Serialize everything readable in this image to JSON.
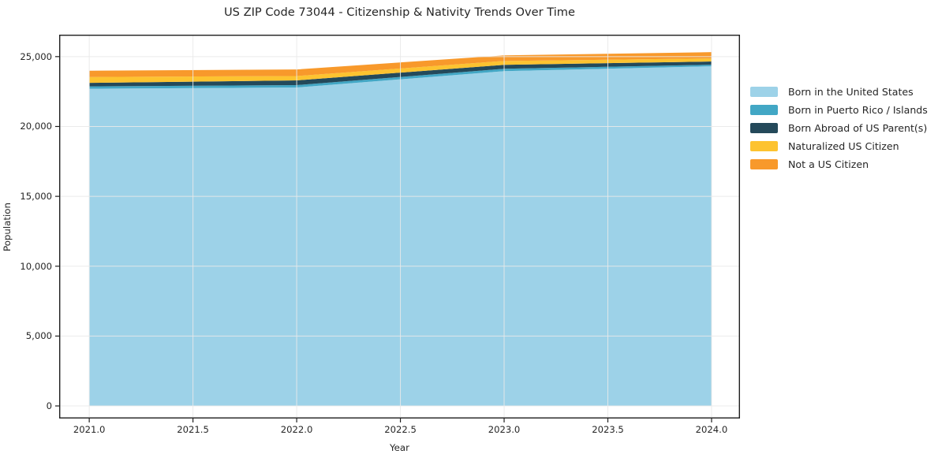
{
  "title": "US ZIP Code 73044 - Citizenship & Nativity Trends Over Time",
  "chart_data": {
    "type": "area",
    "stacked": true,
    "title": "US ZIP Code 73044 - Citizenship & Nativity Trends Over Time",
    "xlabel": "Year",
    "ylabel": "Population",
    "x": [
      2021,
      2022,
      2023,
      2024
    ],
    "series": [
      {
        "name": "Born in the United States",
        "color": "#9dd2e8",
        "values": [
          22700,
          22790,
          23960,
          24310
        ]
      },
      {
        "name": "Born in Puerto Rico / Islands",
        "color": "#42a7c5",
        "values": [
          170,
          170,
          170,
          110
        ]
      },
      {
        "name": "Born Abroad of US Parent(s)",
        "color": "#24495a",
        "values": [
          250,
          340,
          280,
          230
        ]
      },
      {
        "name": "Naturalized US Citizen",
        "color": "#fdc330",
        "values": [
          420,
          310,
          280,
          220
        ]
      },
      {
        "name": "Not a US Citizen",
        "color": "#f8992b",
        "values": [
          450,
          470,
          400,
          450
        ]
      }
    ],
    "x_tick_labels": [
      "2021.0",
      "2021.5",
      "2022.0",
      "2022.5",
      "2023.0",
      "2023.5",
      "2024.0"
    ],
    "x_tick_values": [
      2021.0,
      2021.5,
      2022.0,
      2022.5,
      2023.0,
      2023.5,
      2024.0
    ],
    "y_tick_labels": [
      "0",
      "5,000",
      "10,000",
      "15,000",
      "20,000",
      "25,000"
    ],
    "y_tick_values": [
      0,
      5000,
      10000,
      15000,
      20000,
      25000
    ],
    "xlim": [
      2020.855,
      2024.137
    ],
    "ylim": [
      -900,
      26570
    ],
    "grid": true,
    "grid_color": "#e9e9e9",
    "axis_border_color": "#1f1f1f",
    "legend_position": "right"
  }
}
